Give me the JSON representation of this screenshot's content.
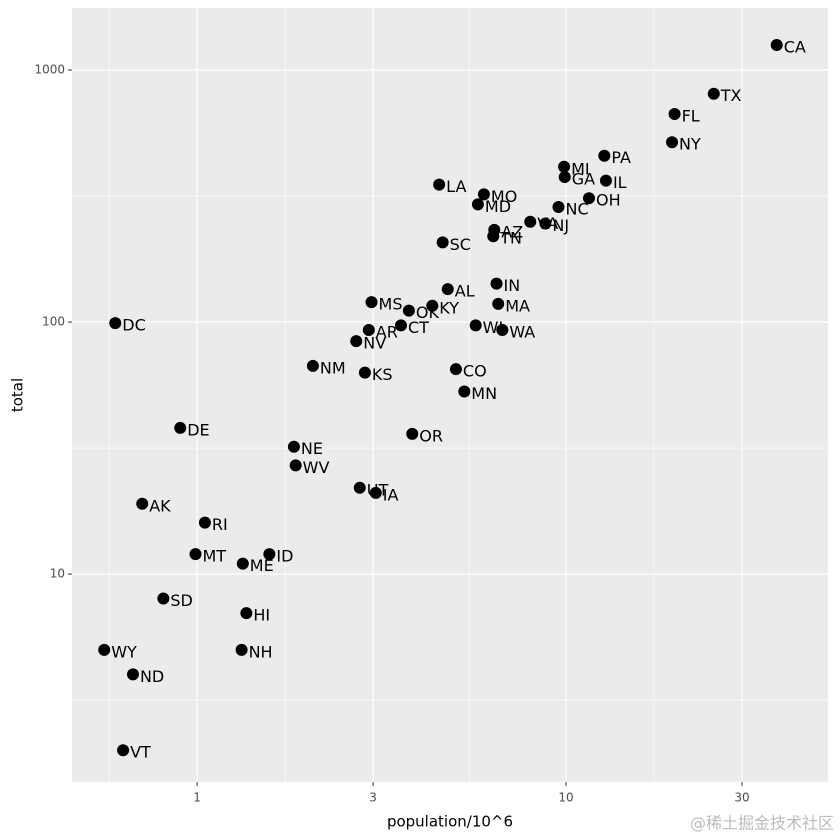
{
  "chart_data": {
    "type": "scatter",
    "x_label": "population/10^6",
    "y_label": "total",
    "labels": [
      "AL",
      "AK",
      "AZ",
      "AR",
      "CA",
      "CO",
      "CT",
      "DE",
      "DC",
      "FL",
      "GA",
      "HI",
      "ID",
      "IL",
      "IN",
      "IA",
      "KS",
      "KY",
      "LA",
      "ME",
      "MD",
      "MA",
      "MI",
      "MN",
      "MS",
      "MO",
      "MT",
      "NE",
      "NV",
      "NH",
      "NJ",
      "NM",
      "NY",
      "NC",
      "ND",
      "OH",
      "OK",
      "OR",
      "PA",
      "RI",
      "SC",
      "SD",
      "TN",
      "TX",
      "UT",
      "VT",
      "VA",
      "WA",
      "WV",
      "WI",
      "WY"
    ],
    "x": [
      4.78,
      0.71,
      6.39,
      2.92,
      37.25,
      5.03,
      3.57,
      0.9,
      0.6,
      19.69,
      9.92,
      1.36,
      1.57,
      12.83,
      6.48,
      3.05,
      2.85,
      4.34,
      4.53,
      1.33,
      5.77,
      6.55,
      9.88,
      5.3,
      2.97,
      5.99,
      0.99,
      1.83,
      2.7,
      1.32,
      8.79,
      2.06,
      19.38,
      9.54,
      0.67,
      11.54,
      3.75,
      3.83,
      12.7,
      1.05,
      4.63,
      0.81,
      6.35,
      25.15,
      2.76,
      0.63,
      8.0,
      6.72,
      1.85,
      5.69,
      0.56
    ],
    "values": [
      135,
      19,
      232,
      93,
      1257,
      65,
      97,
      38,
      99,
      669,
      376,
      7,
      12,
      364,
      142,
      21,
      63,
      116,
      351,
      11,
      293,
      118,
      413,
      53,
      120,
      321,
      12,
      32,
      84,
      5,
      246,
      67,
      517,
      286,
      4,
      310,
      111,
      36,
      457,
      16,
      207,
      8,
      219,
      805,
      22,
      2,
      250,
      93,
      27,
      97,
      5
    ],
    "color": "#000000",
    "xlim": [
      0.458,
      51.3
    ],
    "ylim": [
      1.496,
      1762
    ],
    "xticks": [
      1,
      3,
      10,
      30
    ],
    "yticks": [
      10,
      100,
      1000
    ],
    "log_x": true,
    "log_y": true,
    "grid": true,
    "watermark": "@稀土掘金技术社区"
  }
}
